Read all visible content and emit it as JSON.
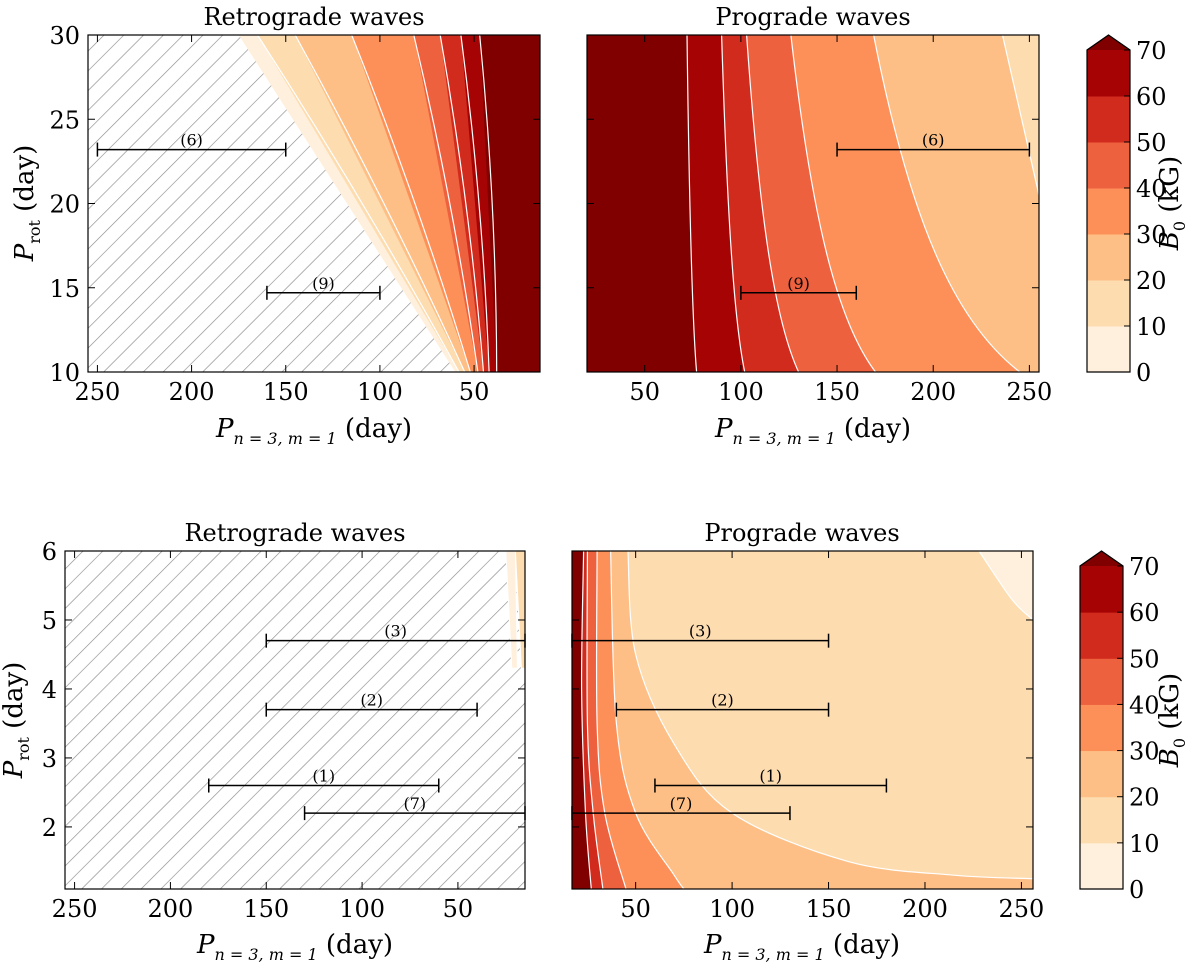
{
  "colors": {
    "levels": [
      "#fff0dd",
      "#fddcb0",
      "#fdbf86",
      "#fc9058",
      "#ee613f",
      "#d12b1e",
      "#a60404",
      "#800000"
    ],
    "contour_line": "#ffffff",
    "hatch": "#8c8c8c"
  },
  "chart_data": [
    {
      "type": "contourf",
      "panel": "top-left",
      "title": "Retrograde waves",
      "xlabel_main": "P",
      "xlabel_sub": "n = 3, m = 1",
      "xlabel_unit": " (day)",
      "ylabel_main": "P",
      "ylabel_sub": "rot",
      "ylabel_unit": " (day)",
      "x_inverted": true,
      "xlim": [
        255,
        15
      ],
      "ylim": [
        10,
        30
      ],
      "xticks": [
        250,
        200,
        150,
        100,
        50
      ],
      "yticks": [
        10,
        15,
        20,
        25,
        30
      ],
      "tick_labels_x": [
        "250",
        "200",
        "150",
        "100",
        "50"
      ],
      "tick_labels_y": [
        "10",
        "15",
        "20",
        "25",
        "30"
      ],
      "hatched_region": "no solution",
      "contour_levels_kG": [
        0,
        10,
        20,
        30,
        40,
        50,
        60,
        70
      ],
      "contour_bands": [
        {
          "level_index": 0,
          "bottom_x": 60,
          "top_x": 175
        },
        {
          "level_index": 1,
          "bottom_x": 58,
          "top_x": 165
        },
        {
          "level_index": 2,
          "bottom_x": 55,
          "top_x": 145
        },
        {
          "level_index": 3,
          "bottom_x": 52,
          "top_x": 115
        },
        {
          "level_index": 4,
          "bottom_x": 48,
          "top_x": 82
        },
        {
          "level_index": 5,
          "bottom_x": 45,
          "top_x": 68
        },
        {
          "level_index": 6,
          "bottom_x": 42,
          "top_x": 57
        },
        {
          "level_index": 7,
          "bottom_x": 38,
          "top_x": 47
        }
      ],
      "intervals": [
        {
          "label": "(6)",
          "x_min": 150,
          "x_max": 250,
          "y": 23.2
        },
        {
          "label": "(9)",
          "x_min": 100,
          "x_max": 160,
          "y": 14.7
        }
      ]
    },
    {
      "type": "contourf",
      "panel": "top-right",
      "title": "Prograde waves",
      "xlabel_main": "P",
      "xlabel_sub": "n = 3, m = 1",
      "xlabel_unit": " (day)",
      "x_inverted": false,
      "xlim": [
        20,
        255
      ],
      "ylim": [
        10,
        30
      ],
      "xticks": [
        50,
        100,
        150,
        200,
        250
      ],
      "tick_labels_x": [
        "50",
        "100",
        "150",
        "200",
        "250"
      ],
      "contour_levels_kG": [
        0,
        10,
        20,
        30,
        40,
        50,
        60,
        70
      ],
      "contour_bands": [
        {
          "level_index": 7,
          "bottom_x": 20,
          "top_x": 20
        },
        {
          "level_index": 6,
          "bottom_x": 77,
          "top_x": 72
        },
        {
          "level_index": 5,
          "bottom_x": 102,
          "top_x": 90
        },
        {
          "level_index": 4,
          "bottom_x": 130,
          "top_x": 103
        },
        {
          "level_index": 3,
          "bottom_x": 170,
          "top_x": 126
        },
        {
          "level_index": 2,
          "bottom_x": 245,
          "top_x": 169
        }
      ],
      "corner_region": {
        "level_index": 1,
        "points": [
          [
            236,
            30
          ],
          [
            246,
            25
          ],
          [
            255,
            20.5
          ]
        ]
      },
      "intervals": [
        {
          "label": "(6)",
          "x_min": 150,
          "x_max": 250,
          "y": 23.2
        },
        {
          "label": "(9)",
          "x_min": 100,
          "x_max": 160,
          "y": 14.7
        }
      ]
    },
    {
      "type": "contourf",
      "panel": "bottom-left",
      "title": "Retrograde waves",
      "xlabel_main": "P",
      "xlabel_sub": "n = 3, m = 1",
      "xlabel_unit": " (day)",
      "ylabel_main": "P",
      "ylabel_sub": "rot",
      "ylabel_unit": " (day)",
      "x_inverted": true,
      "xlim": [
        255,
        15
      ],
      "ylim": [
        1.1,
        6
      ],
      "xticks": [
        250,
        200,
        150,
        100,
        50
      ],
      "yticks": [
        2,
        3,
        4,
        5,
        6
      ],
      "tick_labels_x": [
        "250",
        "200",
        "150",
        "100",
        "50"
      ],
      "tick_labels_y": [
        "2",
        "3",
        "4",
        "5",
        "6"
      ],
      "hatched_region": "no solution",
      "contour_levels_kG": [
        0,
        10,
        20,
        30,
        40,
        50,
        60,
        70
      ],
      "edge_bands": [
        {
          "level_index": 0,
          "x_from": 25,
          "x_to": 20,
          "y_from": 4.3,
          "y_to": 6
        },
        {
          "level_index": 1,
          "x_from": 20,
          "x_to": 15,
          "y_from": 4.3,
          "y_to": 6
        }
      ],
      "intervals": [
        {
          "label": "(3)",
          "x_min": 15,
          "x_max": 150,
          "y": 4.7
        },
        {
          "label": "(2)",
          "x_min": 40,
          "x_max": 150,
          "y": 3.7
        },
        {
          "label": "(1)",
          "x_min": 60,
          "x_max": 180,
          "y": 2.6
        },
        {
          "label": "(7)",
          "x_min": 15,
          "x_max": 130,
          "y": 2.2
        }
      ]
    },
    {
      "type": "contourf",
      "panel": "bottom-right",
      "title": "Prograde waves",
      "xlabel_main": "P",
      "xlabel_sub": "n = 3, m = 1",
      "xlabel_unit": " (day)",
      "x_inverted": false,
      "xlim": [
        17,
        256
      ],
      "ylim": [
        1.1,
        6
      ],
      "xticks": [
        50,
        100,
        150,
        200,
        250
      ],
      "tick_labels_x": [
        "50",
        "100",
        "150",
        "200",
        "250"
      ],
      "contour_levels_kG": [
        0,
        10,
        20,
        30,
        40,
        50,
        60,
        70
      ],
      "contour_lines": [
        {
          "level_index": 6,
          "points": [
            [
              23,
              6
            ],
            [
              22,
              4
            ],
            [
              24,
              2.2
            ],
            [
              27,
              1.1
            ]
          ]
        },
        {
          "level_index": 5,
          "points": [
            [
              25,
              6
            ],
            [
              25,
              3.5
            ],
            [
              28,
              2.2
            ],
            [
              33,
              1.1
            ]
          ]
        },
        {
          "level_index": 4,
          "points": [
            [
              30,
              6
            ],
            [
              30,
              3.5
            ],
            [
              34,
              2.2
            ],
            [
              45,
              1.1
            ]
          ]
        },
        {
          "level_index": 3,
          "points": [
            [
              37,
              6
            ],
            [
              40,
              3.5
            ],
            [
              50,
              2.2
            ],
            [
              70,
              1.3
            ],
            [
              75,
              1.1
            ]
          ]
        },
        {
          "level_index": 2,
          "points": [
            [
              46,
              6
            ],
            [
              50,
              4.5
            ],
            [
              70,
              3.2
            ],
            [
              100,
              2.2
            ],
            [
              160,
              1.5
            ],
            [
              215,
              1.3
            ],
            [
              256,
              1.25
            ]
          ]
        },
        {
          "level_index": 1,
          "points": [
            [
              228,
              6
            ],
            [
              245,
              5.3
            ],
            [
              256,
              5
            ]
          ]
        }
      ],
      "intervals": [
        {
          "label": "(3)",
          "x_min": 17,
          "x_max": 150,
          "y": 4.7
        },
        {
          "label": "(2)",
          "x_min": 40,
          "x_max": 150,
          "y": 3.7
        },
        {
          "label": "(1)",
          "x_min": 60,
          "x_max": 180,
          "y": 2.6
        },
        {
          "label": "(7)",
          "x_min": 17,
          "x_max": 130,
          "y": 2.2
        }
      ]
    }
  ],
  "colorbars": [
    {
      "label_main": "B",
      "label_sub": "0",
      "label_unit": " (kG)",
      "ticks": [
        "0",
        "10",
        "20",
        "30",
        "40",
        "50",
        "60",
        "70"
      ],
      "extend": "max"
    },
    {
      "label_main": "B",
      "label_sub": "0",
      "label_unit": " (kG)",
      "ticks": [
        "0",
        "10",
        "20",
        "30",
        "40",
        "50",
        "60",
        "70"
      ],
      "extend": "max"
    }
  ]
}
